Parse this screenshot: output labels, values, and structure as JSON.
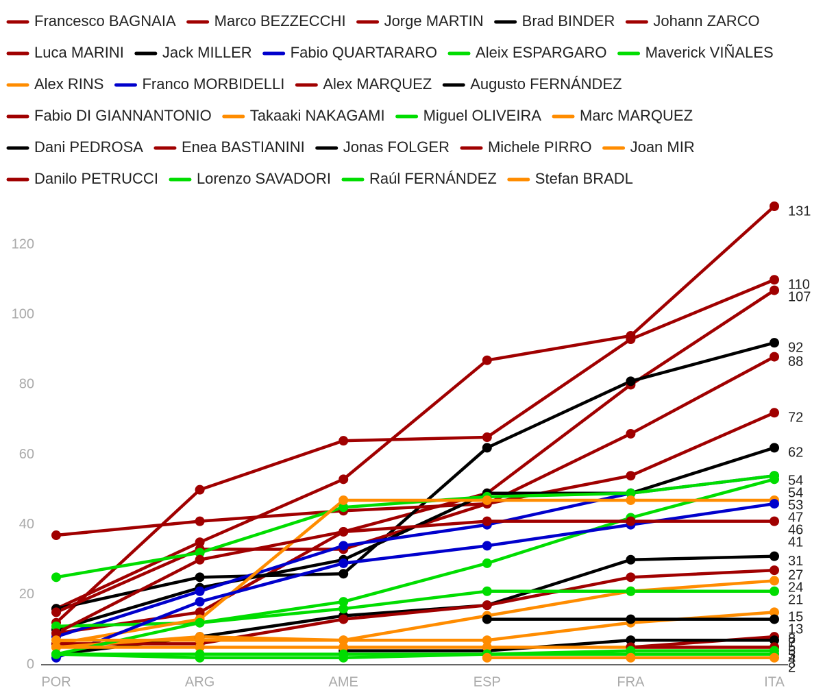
{
  "chart_data": {
    "type": "line",
    "categories": [
      "POR",
      "ARG",
      "AME",
      "ESP",
      "FRA",
      "ITA"
    ],
    "ylim": [
      0,
      131
    ],
    "yticks": [
      0,
      20,
      40,
      60,
      80,
      100,
      120
    ],
    "series": [
      {
        "name": "Francesco BAGNAIA",
        "color": "#a00000",
        "values": [
          16,
          35,
          53,
          87,
          94,
          131
        ]
      },
      {
        "name": "Marco BEZZECCHI",
        "color": "#a00000",
        "values": [
          12,
          50,
          64,
          65,
          93,
          110
        ]
      },
      {
        "name": "Jorge MARTIN",
        "color": "#a00000",
        "values": [
          9,
          15,
          38,
          49,
          80,
          107
        ]
      },
      {
        "name": "Brad BINDER",
        "color": "#000000",
        "values": [
          16,
          25,
          26,
          62,
          81,
          92
        ]
      },
      {
        "name": "Johann ZARCO",
        "color": "#a00000",
        "values": [
          37,
          41,
          44,
          46,
          66,
          88
        ]
      },
      {
        "name": "Luca MARINI",
        "color": "#a00000",
        "values": [
          15,
          33,
          33,
          46,
          54,
          72
        ]
      },
      {
        "name": "Jack MILLER",
        "color": "#000000",
        "values": [
          10,
          22,
          30,
          49,
          49,
          62
        ]
      },
      {
        "name": "Fabio QUARTARARO",
        "color": "#0000cc",
        "values": [
          8,
          21,
          34,
          40,
          49,
          54
        ]
      },
      {
        "name": "Aleix ESPARGARO",
        "color": "#00dd00",
        "values": [
          25,
          32,
          45,
          48,
          49,
          54
        ]
      },
      {
        "name": "Maverick VIÑALES",
        "color": "#00dd00",
        "values": [
          11,
          12,
          18,
          29,
          42,
          53
        ]
      },
      {
        "name": "Alex RINS",
        "color": "#ff8c00",
        "values": [
          6,
          13,
          47,
          47,
          47,
          47
        ]
      },
      {
        "name": "Franco MORBIDELLI",
        "color": "#0000cc",
        "values": [
          2,
          18,
          29,
          34,
          40,
          46
        ]
      },
      {
        "name": "Alex MARQUEZ",
        "color": "#a00000",
        "values": [
          9,
          30,
          38,
          41,
          41,
          41
        ]
      },
      {
        "name": "Augusto FERNÁNDEZ",
        "color": "#000000",
        "values": [
          3,
          8,
          14,
          17,
          30,
          31
        ]
      },
      {
        "name": "Fabio DI GIANNANTONIO",
        "color": "#a00000",
        "values": [
          6,
          6,
          13,
          17,
          25,
          27
        ]
      },
      {
        "name": "Takaaki NAKAGAMI",
        "color": "#ff8c00",
        "values": [
          5,
          8,
          7,
          14,
          21,
          24
        ]
      },
      {
        "name": "Miguel OLIVEIRA",
        "color": "#00dd00",
        "values": [
          3,
          12,
          16,
          21,
          21,
          21
        ]
      },
      {
        "name": "Marc MARQUEZ",
        "color": "#ff8c00",
        "values": [
          7,
          7,
          7,
          7,
          12,
          15
        ]
      },
      {
        "name": "Dani PEDROSA",
        "color": "#000000",
        "values": [
          null,
          null,
          null,
          13,
          13,
          13
        ]
      },
      {
        "name": "Enea BASTIANINI",
        "color": "#a00000",
        "values": [
          null,
          null,
          null,
          null,
          5,
          8
        ]
      },
      {
        "name": "Jonas FOLGER",
        "color": "#000000",
        "values": [
          null,
          null,
          4,
          4,
          7,
          7
        ]
      },
      {
        "name": "Michele PIRRO",
        "color": "#a00000",
        "values": [
          null,
          null,
          null,
          null,
          null,
          5
        ]
      },
      {
        "name": "Joan MIR",
        "color": "#ff8c00",
        "values": [
          5,
          5,
          5,
          5,
          5,
          5
        ]
      },
      {
        "name": "Danilo PETRUCCI",
        "color": "#a00000",
        "values": [
          null,
          null,
          null,
          null,
          5,
          5
        ]
      },
      {
        "name": "Lorenzo SAVADORI",
        "color": "#00dd00",
        "values": [
          3,
          3,
          3,
          3,
          3,
          3
        ]
      },
      {
        "name": "Raúl FERNÁNDEZ",
        "color": "#00dd00",
        "values": [
          3,
          2,
          2,
          3,
          4,
          4
        ]
      },
      {
        "name": "Stefan BRADL",
        "color": "#ff8c00",
        "values": [
          null,
          null,
          null,
          2,
          2,
          2
        ]
      }
    ]
  }
}
